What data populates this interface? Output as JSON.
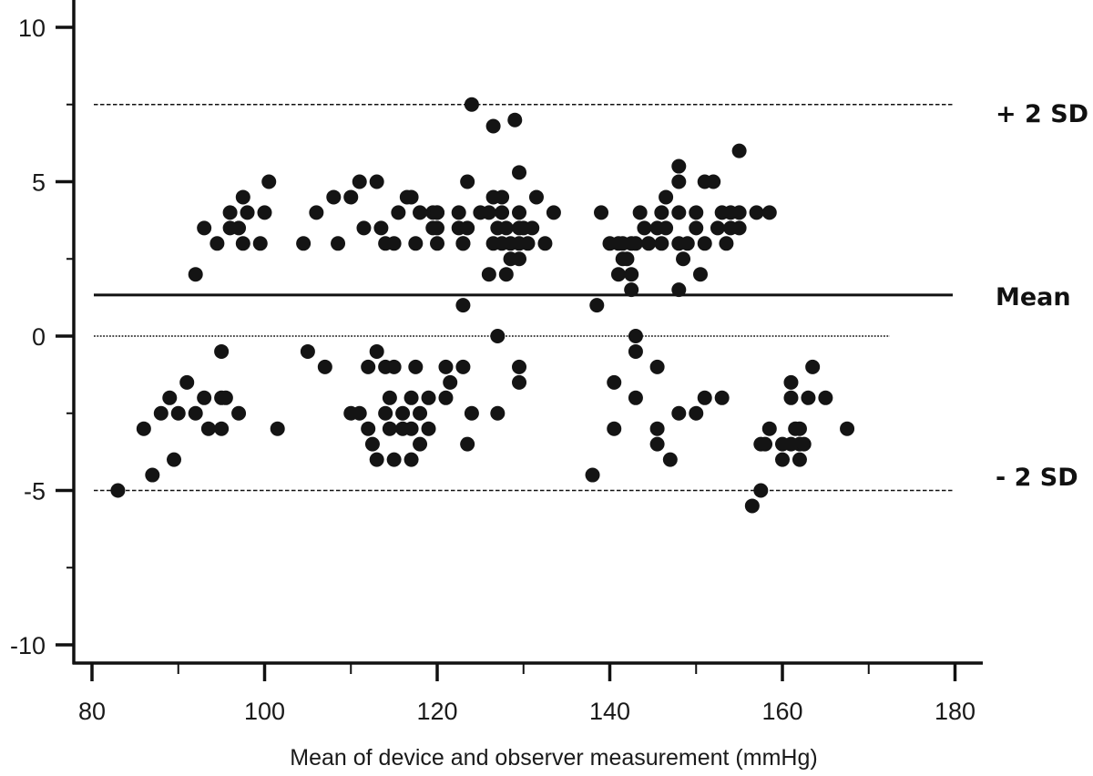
{
  "chart_data": {
    "type": "scatter",
    "title": "",
    "xlabel": "Mean of device and observer measurement (mmHg)",
    "ylabel": "",
    "xlim": [
      77,
      183
    ],
    "ylim": [
      -11,
      11
    ],
    "x_ticks": [
      80,
      100,
      120,
      140,
      160,
      180
    ],
    "x_minor_ticks": [
      90,
      110,
      130,
      150,
      170
    ],
    "y_ticks": [
      10,
      5,
      0,
      -5,
      -10
    ],
    "y_minor_ticks": [
      7.5,
      2.5,
      -2.5,
      -7.5
    ],
    "grid": false,
    "reference_lines": [
      {
        "name": "+2SD",
        "label": "+ 2 SD",
        "y": 7.5,
        "style": "dashed"
      },
      {
        "name": "mean",
        "label": "Mean",
        "y": 1.33,
        "style": "solid"
      },
      {
        "name": "zero",
        "label": "",
        "y": 0,
        "style": "dotted"
      },
      {
        "name": "-2SD",
        "label": "- 2 SD",
        "y": -5.0,
        "style": "dashed"
      }
    ],
    "colors": {
      "points": "#141414",
      "axis": "#111111",
      "lines": "#111111"
    },
    "series": [
      {
        "name": "differences",
        "points": [
          [
            92,
            2
          ],
          [
            93,
            3.5
          ],
          [
            94.5,
            3
          ],
          [
            96,
            4
          ],
          [
            96,
            3.5
          ],
          [
            97,
            3.5
          ],
          [
            97.5,
            3
          ],
          [
            97.5,
            4.5
          ],
          [
            98,
            4
          ],
          [
            99.5,
            3
          ],
          [
            100,
            4
          ],
          [
            100.5,
            5
          ],
          [
            104.5,
            3
          ],
          [
            106,
            4
          ],
          [
            108,
            4.5
          ],
          [
            108.5,
            3
          ],
          [
            110,
            4.5
          ],
          [
            111,
            5
          ],
          [
            111.5,
            3.5
          ],
          [
            113,
            5
          ],
          [
            113.5,
            3.5
          ],
          [
            114,
            3
          ],
          [
            115,
            3
          ],
          [
            115.5,
            4
          ],
          [
            116.5,
            4.5
          ],
          [
            117,
            4.5
          ],
          [
            117.5,
            3
          ],
          [
            119.5,
            3.5
          ],
          [
            119.5,
            4
          ],
          [
            120,
            4
          ],
          [
            120,
            3
          ],
          [
            122.5,
            4
          ],
          [
            122.5,
            3.5
          ],
          [
            123.5,
            5
          ],
          [
            124,
            7.5
          ],
          [
            126.5,
            6.8
          ],
          [
            129,
            7
          ],
          [
            123,
            3
          ],
          [
            126,
            4
          ],
          [
            129.5,
            5.3
          ],
          [
            126.5,
            4.5
          ],
          [
            127.5,
            4.5
          ],
          [
            131.5,
            4.5
          ],
          [
            118,
            4
          ],
          [
            120,
            4
          ],
          [
            125,
            4
          ],
          [
            127.5,
            4
          ],
          [
            129.5,
            4
          ],
          [
            133.5,
            4
          ],
          [
            120,
            3.5
          ],
          [
            123.5,
            3.5
          ],
          [
            127,
            3.5
          ],
          [
            128,
            3.5
          ],
          [
            129.5,
            3.5
          ],
          [
            130,
            3.5
          ],
          [
            131,
            3.5
          ],
          [
            123,
            3
          ],
          [
            126.5,
            3
          ],
          [
            127.5,
            3
          ],
          [
            128.5,
            3
          ],
          [
            129.5,
            3
          ],
          [
            130.5,
            3
          ],
          [
            132.5,
            3
          ],
          [
            128.5,
            2.5
          ],
          [
            129.5,
            2.5
          ],
          [
            126,
            2
          ],
          [
            128,
            2
          ],
          [
            123,
            1
          ],
          [
            139,
            4
          ],
          [
            141.5,
            3
          ],
          [
            143.5,
            4
          ],
          [
            146,
            4
          ],
          [
            146.5,
            4.5
          ],
          [
            148,
            5
          ],
          [
            148,
            5.5
          ],
          [
            151,
            5
          ],
          [
            152,
            5
          ],
          [
            155,
            6
          ],
          [
            142.5,
            3
          ],
          [
            144,
            3.5
          ],
          [
            145.5,
            3.5
          ],
          [
            146.5,
            3.5
          ],
          [
            148,
            4
          ],
          [
            150,
            4
          ],
          [
            153,
            4
          ],
          [
            154,
            4
          ],
          [
            155,
            4
          ],
          [
            157,
            4
          ],
          [
            158.5,
            4
          ],
          [
            140,
            3
          ],
          [
            141,
            3
          ],
          [
            143,
            3
          ],
          [
            144.5,
            3
          ],
          [
            146,
            3
          ],
          [
            148,
            3
          ],
          [
            149,
            3
          ],
          [
            151,
            3
          ],
          [
            153.5,
            3
          ],
          [
            150,
            3.5
          ],
          [
            152.5,
            3.5
          ],
          [
            154,
            3.5
          ],
          [
            155,
            3.5
          ],
          [
            141.5,
            2.5
          ],
          [
            142,
            2.5
          ],
          [
            148.5,
            2.5
          ],
          [
            141,
            2
          ],
          [
            142.5,
            2
          ],
          [
            150.5,
            2
          ],
          [
            142.5,
            1.5
          ],
          [
            148,
            1.5
          ],
          [
            138.5,
            1
          ],
          [
            83,
            -5
          ],
          [
            87,
            -4.5
          ],
          [
            89.5,
            -4
          ],
          [
            86,
            -3
          ],
          [
            88,
            -2.5
          ],
          [
            90,
            -2.5
          ],
          [
            92,
            -2.5
          ],
          [
            89,
            -2
          ],
          [
            91,
            -1.5
          ],
          [
            93,
            -2
          ],
          [
            95,
            -2
          ],
          [
            95.5,
            -2
          ],
          [
            97,
            -2.5
          ],
          [
            95,
            -3
          ],
          [
            93.5,
            -3
          ],
          [
            101.5,
            -3
          ],
          [
            95,
            -0.5
          ],
          [
            105,
            -0.5
          ],
          [
            107,
            -1
          ],
          [
            113,
            -0.5
          ],
          [
            110,
            -2.5
          ],
          [
            112,
            -1
          ],
          [
            114,
            -1
          ],
          [
            115,
            -1
          ],
          [
            117.5,
            -1
          ],
          [
            121,
            -1
          ],
          [
            123,
            -1
          ],
          [
            121.5,
            -1.5
          ],
          [
            114.5,
            -2
          ],
          [
            117,
            -2
          ],
          [
            119,
            -2
          ],
          [
            121,
            -2
          ],
          [
            111,
            -2.5
          ],
          [
            114,
            -2.5
          ],
          [
            116,
            -2.5
          ],
          [
            118,
            -2.5
          ],
          [
            112,
            -3
          ],
          [
            114.5,
            -3
          ],
          [
            116,
            -3
          ],
          [
            117,
            -3
          ],
          [
            119,
            -3
          ],
          [
            112.5,
            -3.5
          ],
          [
            118,
            -3.5
          ],
          [
            123.5,
            -3.5
          ],
          [
            113,
            -4
          ],
          [
            115,
            -4
          ],
          [
            117,
            -4
          ],
          [
            124,
            -2.5
          ],
          [
            127,
            -2.5
          ],
          [
            129.5,
            -1
          ],
          [
            129.5,
            -1.5
          ],
          [
            127,
            0
          ],
          [
            143,
            0
          ],
          [
            143,
            -0.5
          ],
          [
            145.5,
            -1
          ],
          [
            140.5,
            -1.5
          ],
          [
            143,
            -2
          ],
          [
            151,
            -2
          ],
          [
            153,
            -2
          ],
          [
            148,
            -2.5
          ],
          [
            150,
            -2.5
          ],
          [
            140.5,
            -3
          ],
          [
            145.5,
            -3
          ],
          [
            145.5,
            -3.5
          ],
          [
            147,
            -4
          ],
          [
            138,
            -4.5
          ],
          [
            163.5,
            -1
          ],
          [
            161,
            -1.5
          ],
          [
            161,
            -2
          ],
          [
            163,
            -2
          ],
          [
            165,
            -2
          ],
          [
            158.5,
            -3
          ],
          [
            161.5,
            -3
          ],
          [
            162,
            -3
          ],
          [
            167.5,
            -3
          ],
          [
            157.5,
            -3.5
          ],
          [
            158,
            -3.5
          ],
          [
            160,
            -3.5
          ],
          [
            161,
            -3.5
          ],
          [
            162,
            -3.5
          ],
          [
            162.5,
            -3.5
          ],
          [
            160,
            -4
          ],
          [
            162,
            -4
          ],
          [
            157.5,
            -5
          ],
          [
            156.5,
            -5.5
          ]
        ]
      }
    ]
  },
  "axes": {
    "x_label": "Mean of device and observer measurement (mmHg)",
    "x_tick_labels": [
      "80",
      "100",
      "120",
      "140",
      "160",
      "180"
    ],
    "y_tick_labels": [
      "10",
      "5",
      "0",
      "-5",
      "-10"
    ]
  },
  "labels": {
    "plus_2sd": "+ 2 SD",
    "mean": "Mean",
    "minus_2sd": "- 2 SD"
  }
}
